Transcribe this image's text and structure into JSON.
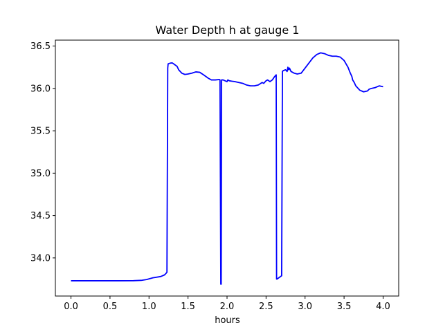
{
  "chart_data": {
    "type": "line",
    "title": "Water Depth h at gauge 1",
    "xlabel": "hours",
    "ylabel": "",
    "xlim": [
      -0.2,
      4.2
    ],
    "ylim": [
      33.55,
      36.57
    ],
    "xticks": [
      0.0,
      0.5,
      1.0,
      1.5,
      2.0,
      2.5,
      3.0,
      3.5,
      4.0
    ],
    "xtick_labels": [
      "0.0",
      "0.5",
      "1.0",
      "1.5",
      "2.0",
      "2.5",
      "3.0",
      "3.5",
      "4.0"
    ],
    "yticks": [
      34.0,
      34.5,
      35.0,
      35.5,
      36.0,
      36.5
    ],
    "ytick_labels": [
      "34.0",
      "34.5",
      "35.0",
      "35.5",
      "36.0",
      "36.5"
    ],
    "grid": false,
    "color": "#0000ff",
    "series": [
      {
        "x": [
          0.0,
          0.3,
          0.6,
          0.8,
          0.9,
          0.97,
          1.05,
          1.15,
          1.2,
          1.23,
          1.24,
          1.245,
          1.26,
          1.28,
          1.3,
          1.33,
          1.36,
          1.38,
          1.42,
          1.46,
          1.5,
          1.55,
          1.6,
          1.65,
          1.7,
          1.76,
          1.8,
          1.85,
          1.9,
          1.91,
          1.92,
          1.925,
          1.93,
          1.95,
          2.0,
          2.01,
          2.03,
          2.06,
          2.1,
          2.15,
          2.2,
          2.25,
          2.3,
          2.35,
          2.4,
          2.45,
          2.47,
          2.5,
          2.52,
          2.55,
          2.58,
          2.61,
          2.63,
          2.635,
          2.64,
          2.7,
          2.71,
          2.72,
          2.75,
          2.77,
          2.78,
          2.79,
          2.8,
          2.82,
          2.86,
          2.9,
          2.95,
          3.0,
          3.05,
          3.1,
          3.15,
          3.2,
          3.25,
          3.3,
          3.35,
          3.4,
          3.45,
          3.5,
          3.55,
          3.58,
          3.6,
          3.61,
          3.63,
          3.65,
          3.7,
          3.75,
          3.8,
          3.82,
          3.85,
          3.9,
          3.95,
          4.0
        ],
        "y": [
          33.73,
          33.73,
          33.73,
          33.731,
          33.735,
          33.745,
          33.765,
          33.78,
          33.8,
          33.83,
          36.24,
          36.29,
          36.295,
          36.3,
          36.3,
          36.28,
          36.26,
          36.22,
          36.18,
          36.165,
          36.17,
          36.18,
          36.195,
          36.19,
          36.16,
          36.12,
          36.1,
          36.1,
          36.105,
          36.1,
          33.69,
          33.69,
          36.1,
          36.1,
          36.08,
          36.1,
          36.09,
          36.085,
          36.08,
          36.07,
          36.06,
          36.04,
          36.03,
          36.03,
          36.04,
          36.07,
          36.06,
          36.09,
          36.1,
          36.08,
          36.1,
          36.14,
          36.16,
          33.75,
          33.75,
          33.79,
          36.2,
          36.21,
          36.22,
          36.2,
          36.25,
          36.22,
          36.24,
          36.2,
          36.18,
          36.17,
          36.18,
          36.24,
          36.3,
          36.36,
          36.4,
          36.42,
          36.41,
          36.39,
          36.38,
          36.38,
          36.37,
          36.33,
          36.25,
          36.18,
          36.14,
          36.1,
          36.07,
          36.03,
          35.98,
          35.96,
          35.97,
          35.99,
          36.0,
          36.01,
          36.03,
          36.02
        ]
      }
    ]
  }
}
